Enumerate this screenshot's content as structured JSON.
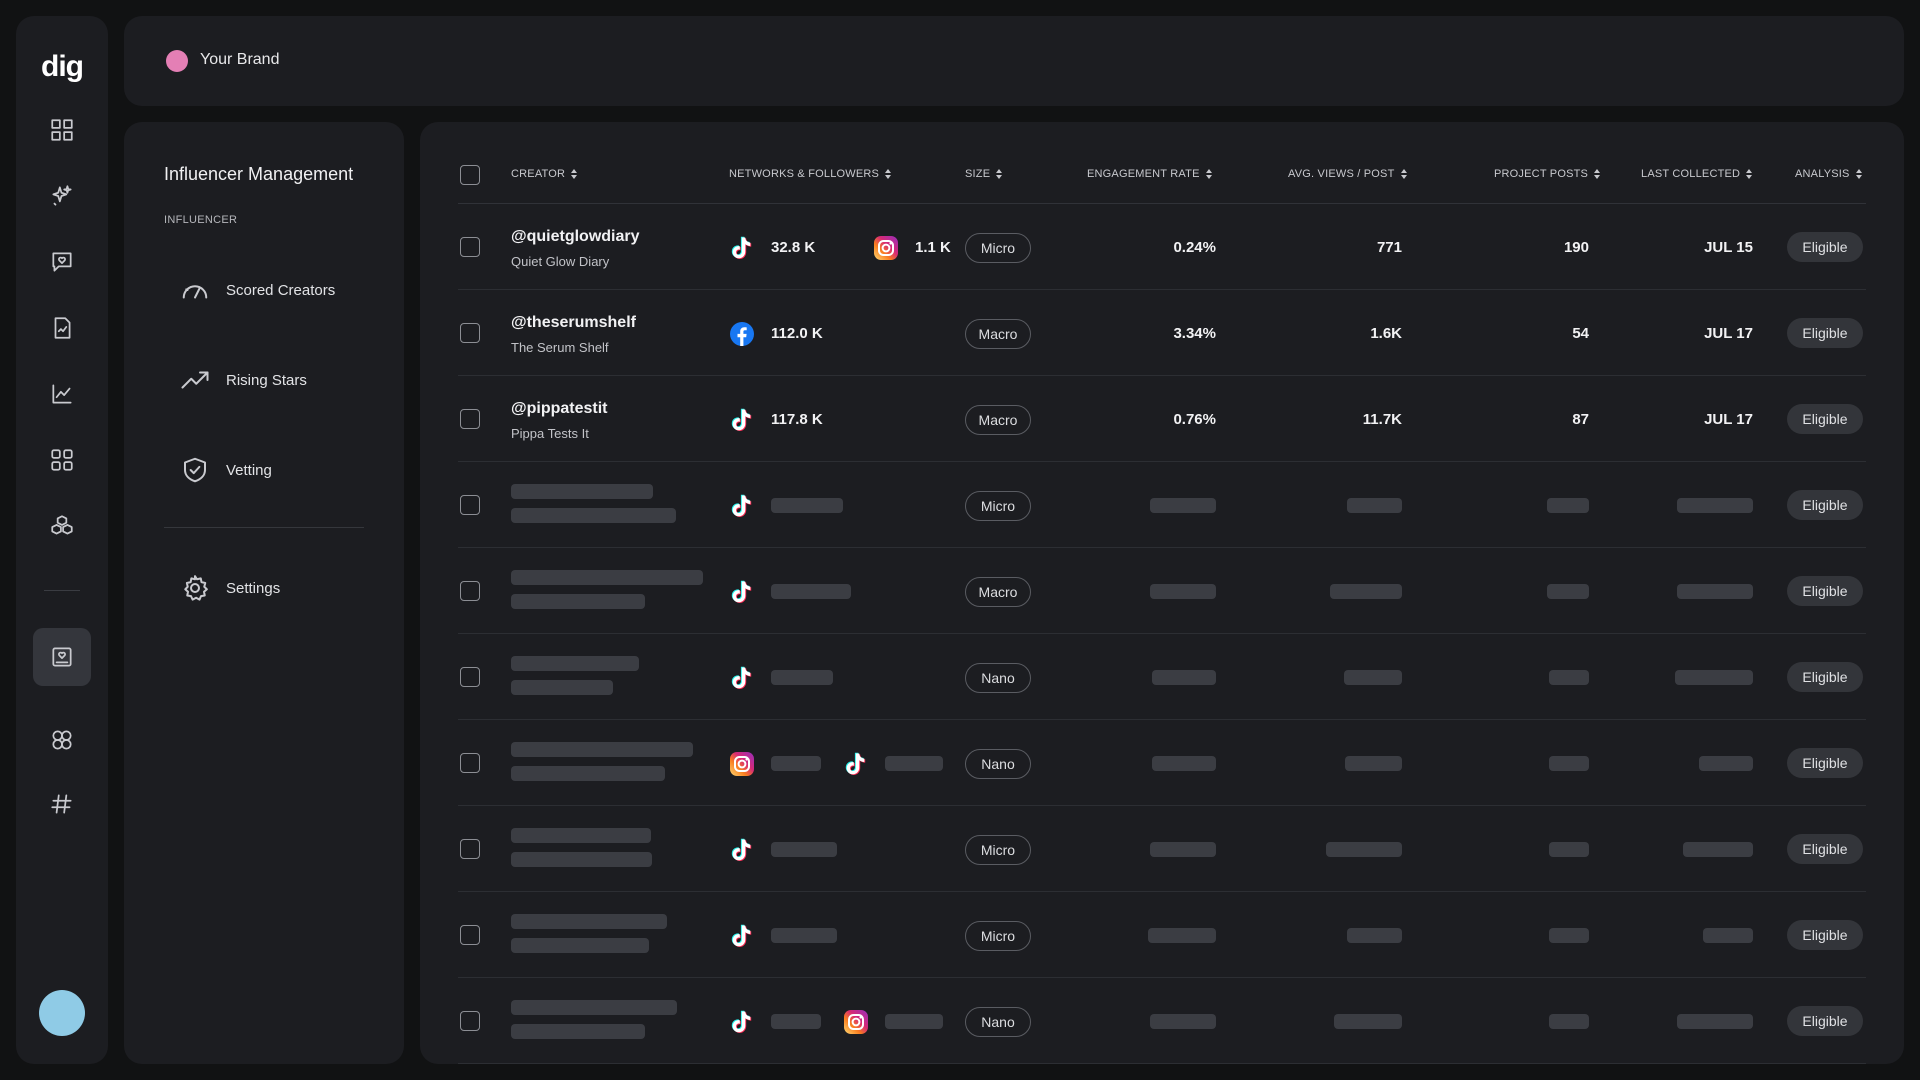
{
  "rail": {
    "logo": "dig",
    "icons": [
      "dashboard-icon",
      "sparkle-icon",
      "chat-heart-icon",
      "report-icon",
      "analytics-icon",
      "apps-icon",
      "cubes-icon",
      "influencer-icon",
      "network-icon",
      "hashtag-icon"
    ]
  },
  "topbar": {
    "brand_name": "Your Brand",
    "brand_color": "#e47fb5"
  },
  "sidepanel": {
    "title": "Influencer Management",
    "section": "INFLUENCER",
    "items": [
      {
        "label": "Scored Creators",
        "icon": "gauge-icon"
      },
      {
        "label": "Rising Stars",
        "icon": "trend-up-icon"
      },
      {
        "label": "Vetting",
        "icon": "shield-check-icon"
      }
    ],
    "settings_label": "Settings"
  },
  "table": {
    "headers": {
      "creator": "CREATOR",
      "networks": "NETWORKS & FOLLOWERS",
      "size": "SIZE",
      "engagement": "ENGAGEMENT RATE",
      "avg_views": "AVG. VIEWS / POST",
      "project_posts": "PROJECT POSTS",
      "last_collected": "LAST COLLECTED",
      "analysis": "ANALYSIS"
    },
    "rows": [
      {
        "handle": "@quietglowdiary",
        "name": "Quiet Glow Diary",
        "networks": [
          {
            "net": "tiktok",
            "count": "32.8 K"
          },
          {
            "net": "instagram",
            "count": "1.1 K"
          }
        ],
        "size": "Micro",
        "engagement": "0.24%",
        "avg_views": "771",
        "project_posts": "190",
        "last_collected": "JUL 15",
        "analysis": "Eligible"
      },
      {
        "handle": "@theserumshelf",
        "name": "The Serum Shelf",
        "networks": [
          {
            "net": "facebook",
            "count": "112.0 K"
          }
        ],
        "size": "Macro",
        "engagement": "3.34%",
        "avg_views": "1.6K",
        "project_posts": "54",
        "last_collected": "JUL 17",
        "analysis": "Eligible"
      },
      {
        "handle": "@pippatestit",
        "name": "Pippa Tests It",
        "networks": [
          {
            "net": "tiktok",
            "count": "117.8 K"
          }
        ],
        "size": "Macro",
        "engagement": "0.76%",
        "avg_views": "11.7K",
        "project_posts": "87",
        "last_collected": "JUL 17",
        "analysis": "Eligible"
      },
      {
        "networks": [
          {
            "net": "tiktok"
          }
        ],
        "size": "Micro",
        "analysis": "Eligible"
      },
      {
        "networks": [
          {
            "net": "tiktok"
          }
        ],
        "size": "Macro",
        "analysis": "Eligible"
      },
      {
        "networks": [
          {
            "net": "tiktok"
          }
        ],
        "size": "Nano",
        "analysis": "Eligible"
      },
      {
        "networks": [
          {
            "net": "instagram"
          },
          {
            "net": "tiktok"
          }
        ],
        "size": "Nano",
        "analysis": "Eligible"
      },
      {
        "networks": [
          {
            "net": "tiktok"
          }
        ],
        "size": "Micro",
        "analysis": "Eligible"
      },
      {
        "networks": [
          {
            "net": "tiktok"
          }
        ],
        "size": "Micro",
        "analysis": "Eligible"
      },
      {
        "networks": [
          {
            "net": "tiktok"
          },
          {
            "net": "instagram"
          }
        ],
        "size": "Nano",
        "analysis": "Eligible"
      }
    ]
  }
}
